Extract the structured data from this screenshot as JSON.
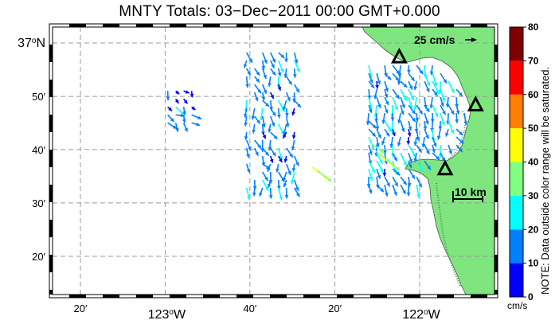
{
  "title": "MNTY Totals: 03−Dec−2011 00:00 GMT+0.000",
  "map": {
    "x_ticks": [
      {
        "label": "20′",
        "deg": "",
        "suffix": "",
        "lon": -123.333
      },
      {
        "label": "123",
        "deg": "o",
        "suffix": "W",
        "lon": -123.0
      },
      {
        "label": "40′",
        "deg": "",
        "suffix": "",
        "lon": -122.667
      },
      {
        "label": "20′",
        "deg": "",
        "suffix": "",
        "lon": -122.333
      },
      {
        "label": "122",
        "deg": "o",
        "suffix": "W",
        "lon": -122.0
      }
    ],
    "y_ticks": [
      {
        "label": "37",
        "deg": "o",
        "suffix": "N",
        "lat": 37.0
      },
      {
        "label": "50′",
        "deg": "",
        "suffix": "",
        "lat": 36.833
      },
      {
        "label": "40′",
        "deg": "",
        "suffix": "",
        "lat": 36.667
      },
      {
        "label": "30′",
        "deg": "",
        "suffix": "",
        "lat": 36.5
      },
      {
        "label": "20′",
        "deg": "",
        "suffix": "",
        "lat": 36.333
      }
    ],
    "reference_arrow_label": "25 cm/s",
    "scale_bar_label": "10 km",
    "land_color": "#7fe67f",
    "grid_color": "#9a9a9a",
    "sites": [
      {
        "name": "site-north",
        "lon": -122.08,
        "lat": 36.955
      },
      {
        "name": "site-east",
        "lon": -121.78,
        "lat": 36.805
      },
      {
        "name": "site-south",
        "lon": -121.9,
        "lat": 36.605
      }
    ]
  },
  "colorbar": {
    "ticks": [
      "0",
      "10",
      "20",
      "30",
      "40",
      "50",
      "60",
      "70",
      "80"
    ],
    "colors": [
      "#0000ff",
      "#0080ff",
      "#00ffff",
      "#80ff80",
      "#ffff00",
      "#ff8000",
      "#ff0000",
      "#800000"
    ],
    "unit": "cm/s",
    "note": "NOTE: Data outside color range will be saturated."
  },
  "current_vectors": {
    "units": "cm/s",
    "regions": [
      {
        "name": "west-patch",
        "lon_range": [
          -122.68,
          -122.47
        ],
        "lat_range": [
          36.53,
          36.97
        ],
        "mean_u": 3,
        "mean_v": -14
      },
      {
        "name": "east-patch",
        "lon_range": [
          -122.2,
          -121.82
        ],
        "lat_range": [
          36.55,
          36.93
        ],
        "mean_u": 4,
        "mean_v": -16
      },
      {
        "name": "far-west",
        "lon_range": [
          -122.99,
          -122.87
        ],
        "lat_range": [
          36.75,
          36.85
        ],
        "mean_u": 8,
        "mean_v": -8
      }
    ]
  }
}
